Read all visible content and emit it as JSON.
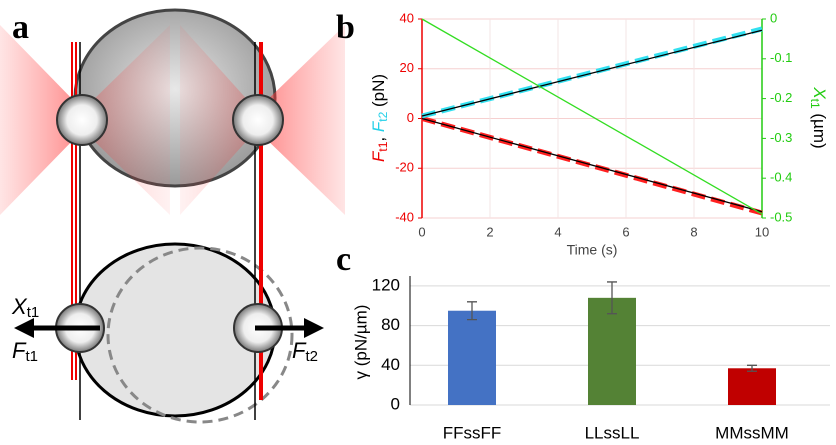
{
  "diagram": {
    "panel_label": "a",
    "x_t1": {
      "symbol": "X",
      "sub": "t1"
    },
    "f_t1": {
      "symbol": "F",
      "sub": "t1"
    },
    "f_t2": {
      "symbol": "F",
      "sub": "t2"
    }
  },
  "chart_data": [
    {
      "type": "line",
      "panel_label": "b",
      "x": [
        0,
        10
      ],
      "xlim": [
        0,
        10
      ],
      "xticks": [
        0,
        2,
        4,
        6,
        8,
        10
      ],
      "xlabel": "Time (s)",
      "ylim": [
        -40,
        40
      ],
      "yticks": [
        -40,
        -20,
        0,
        20,
        40
      ],
      "ylabel": {
        "f1": "F",
        "f1_sub": "t1",
        "sep": ", ",
        "f2": "F",
        "f2_sub": "t2",
        "unit": " (pN)"
      },
      "y2lim": [
        -0.5,
        0
      ],
      "y2ticks": [
        -0.5,
        -0.4,
        -0.3,
        -0.2,
        -0.1,
        0
      ],
      "y2label": {
        "symbol": "X",
        "sub": "t1",
        "unit": " (µm)"
      },
      "grid": true,
      "series": [
        {
          "color": "#ff2020",
          "dashed": true,
          "values": [
            0,
            -38
          ]
        },
        {
          "color": "#000000",
          "values": [
            0,
            -37.5
          ]
        },
        {
          "color": "#33e0f0",
          "dashed": true,
          "values": [
            1,
            36
          ]
        },
        {
          "color": "#000000",
          "values": [
            1,
            35.5
          ]
        },
        {
          "color": "#33dd22",
          "axis": "y2",
          "values": [
            0,
            -0.49
          ]
        }
      ]
    },
    {
      "type": "bar",
      "panel_label": "c",
      "categories": [
        "FFssFF",
        "LLssLL",
        "MMssMM"
      ],
      "values": [
        95,
        108,
        37
      ],
      "errors": [
        9,
        16,
        3
      ],
      "colors": [
        "#4472c4",
        "#548235",
        "#c00000"
      ],
      "ylim": [
        0,
        130
      ],
      "yticks": [
        0,
        40,
        80,
        120
      ],
      "ylabel": "γ (pN/µm)",
      "grid": true
    }
  ]
}
